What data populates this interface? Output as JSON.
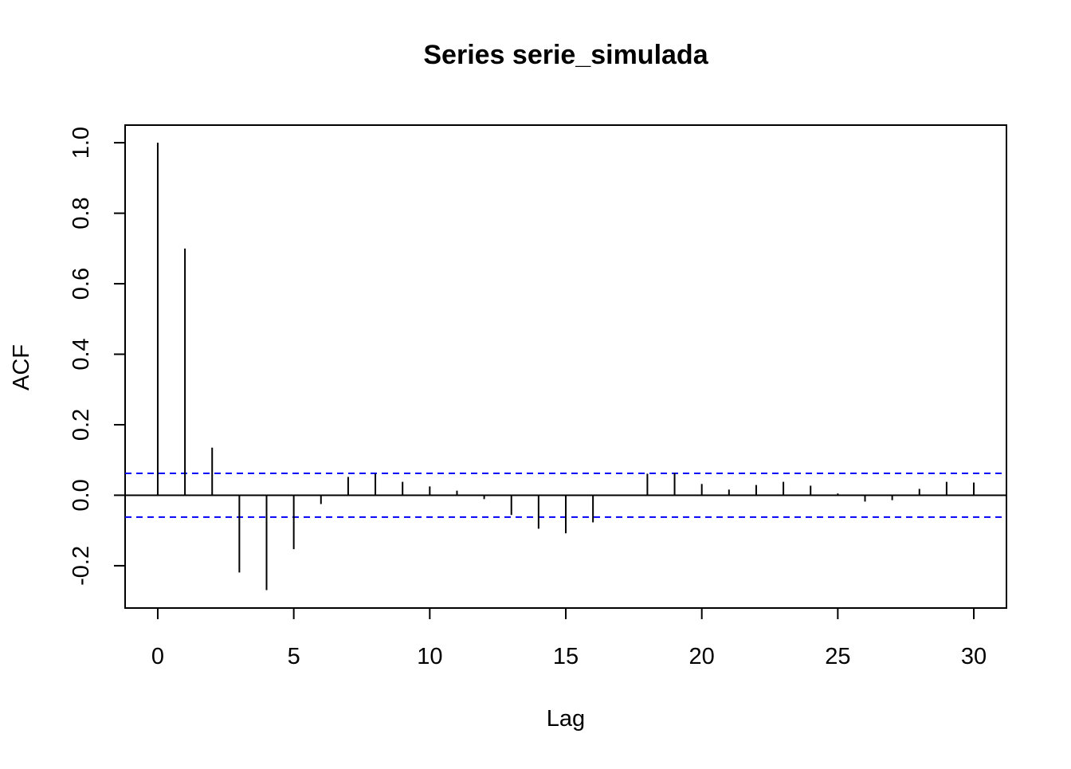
{
  "chart_data": {
    "type": "stem",
    "title": "Series  serie_simulada",
    "xlabel": "Lag",
    "ylabel": "ACF",
    "x": [
      0,
      1,
      2,
      3,
      4,
      5,
      6,
      7,
      8,
      9,
      10,
      11,
      12,
      13,
      14,
      15,
      16,
      17,
      18,
      19,
      20,
      21,
      22,
      23,
      24,
      25,
      26,
      27,
      28,
      29,
      30
    ],
    "values": [
      1.0,
      0.7,
      0.135,
      -0.219,
      -0.269,
      -0.153,
      -0.025,
      0.052,
      0.061,
      0.038,
      0.025,
      0.013,
      -0.011,
      -0.056,
      -0.095,
      -0.108,
      -0.077,
      0.0,
      0.061,
      0.063,
      0.032,
      0.016,
      0.029,
      0.038,
      0.027,
      0.005,
      -0.018,
      -0.014,
      0.018,
      0.038,
      0.036
    ],
    "color": "#000000",
    "ci_lines": [
      0.062,
      -0.062
    ],
    "ci_color": "#0000ff",
    "xlim": [
      -1.2,
      31.2
    ],
    "ylim": [
      -0.32,
      1.05
    ],
    "xticks": [
      0,
      5,
      10,
      15,
      20,
      25,
      30
    ],
    "yticks": [
      -0.2,
      {
        "value": 0,
        "label": "0.0"
      },
      0.2,
      0.4,
      0.6,
      0.8,
      {
        "value": 1,
        "label": "1.0"
      }
    ]
  }
}
